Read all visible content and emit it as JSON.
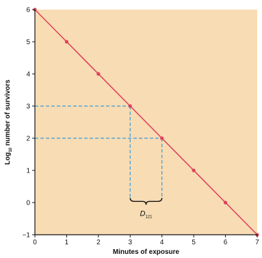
{
  "chart_data": {
    "type": "line",
    "xlabel": "Minutes of exposure",
    "ylabel_main": "Log",
    "ylabel_sub": "10",
    "ylabel_rest": " number of survivors",
    "xlim": [
      0,
      7
    ],
    "ylim": [
      -1,
      6
    ],
    "x_ticks": [
      "0",
      "1",
      "2",
      "3",
      "4",
      "5",
      "6",
      "7"
    ],
    "y_ticks": [
      "−1",
      "0",
      "1",
      "2",
      "3",
      "4",
      "5",
      "6"
    ],
    "grid": false,
    "series": [
      {
        "x": [
          0,
          1,
          2,
          3,
          4,
          5,
          6,
          7
        ],
        "y": [
          6,
          5,
          4,
          3,
          2,
          1,
          0,
          -1
        ]
      }
    ],
    "guides": {
      "x_from": 3,
      "x_to": 4,
      "y_high": 3,
      "y_low": 2,
      "bottom_y": 0.1
    },
    "annotation": {
      "label_main": "D",
      "label_sub": "121"
    },
    "colors": {
      "plot_bg": "#f7dcb4",
      "line": "#e0405a",
      "points": "#e0405a",
      "guide": "#3a9ad9",
      "axis": "#111111"
    }
  }
}
